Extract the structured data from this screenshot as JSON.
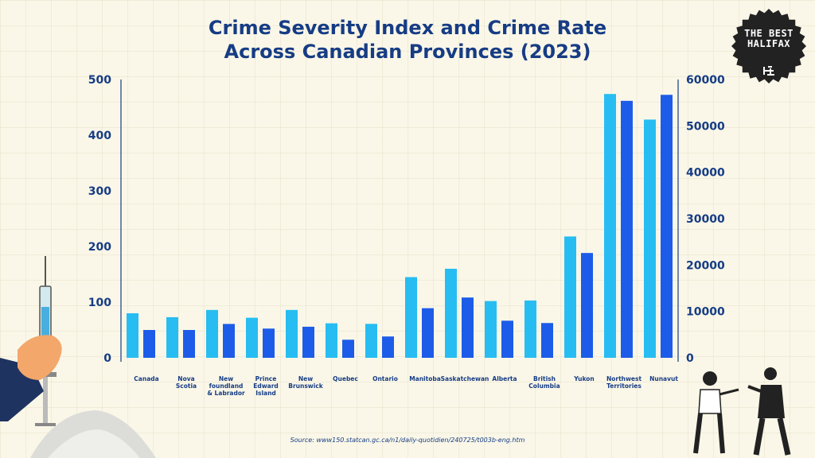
{
  "header": {
    "title_line1": "Crime Severity Index and Crime Rate",
    "title_line2": "Across Canadian Provinces (2023)"
  },
  "logo": {
    "line1": "THE BEST",
    "line2": "HALIFAX"
  },
  "footer": {
    "source": "Source: www150.statcan.gc.ca/n1/daily-quotidien/240725/t003b-eng.htm"
  },
  "colors": {
    "severity": "#27bdf2",
    "rate": "#1d5ce8",
    "text": "#163c84",
    "badge": "#222222"
  },
  "chart_data": {
    "type": "bar",
    "title": "Crime Severity Index and Crime Rate Across Canadian Provinces (2023)",
    "categories": [
      [
        "Canada"
      ],
      [
        "Nova",
        "Scotia"
      ],
      [
        "New",
        "foundland",
        "& Labrador"
      ],
      [
        "Prince",
        "Edward",
        "Island"
      ],
      [
        "New",
        "Brunswick"
      ],
      [
        "Quebec"
      ],
      [
        "Ontario"
      ],
      [
        "Manitoba"
      ],
      [
        "Saskatchewan"
      ],
      [
        "Alberta"
      ],
      [
        "British",
        "Columbia"
      ],
      [
        "Yukon"
      ],
      [
        "Northwest",
        "Territories"
      ],
      [
        "Nunavut"
      ]
    ],
    "series": [
      {
        "axis": "left",
        "values": [
          80,
          73,
          86,
          72,
          86,
          62,
          61,
          145,
          160,
          102,
          103,
          218,
          474,
          428
        ]
      },
      {
        "axis": "right",
        "values": [
          6000,
          6000,
          7300,
          6300,
          6700,
          3900,
          4600,
          10700,
          13000,
          8000,
          7500,
          22600,
          55400,
          56700
        ]
      }
    ],
    "y_left": {
      "min": 0,
      "max": 500,
      "ticks": [
        0,
        100,
        200,
        300,
        400,
        500
      ]
    },
    "y_right": {
      "min": 0,
      "max": 60000,
      "ticks": [
        0,
        10000,
        20000,
        30000,
        40000,
        50000,
        60000
      ]
    },
    "grid": false,
    "legend": "none"
  }
}
